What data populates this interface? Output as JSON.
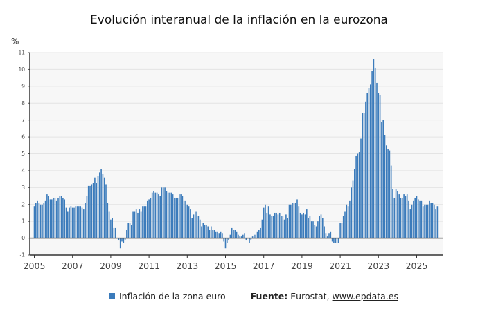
{
  "chart_data": {
    "type": "bar",
    "title": "Evolución interanual de la inflación en la eurozona",
    "ylabel": "%",
    "xlabel": "",
    "ylim": [
      -1,
      11
    ],
    "yticks": [
      -1,
      0,
      1,
      2,
      3,
      4,
      5,
      6,
      7,
      8,
      9,
      10,
      11
    ],
    "xticks": [
      "2005",
      "2007",
      "2009",
      "2011",
      "2013",
      "2015",
      "2017",
      "2019",
      "2021",
      "2023",
      "2025"
    ],
    "grid": true,
    "legend_position": "bottom",
    "start": "2005-01",
    "frequency": "monthly",
    "series": [
      {
        "name": "Inflación de la zona euro",
        "color": "#3b7bbb",
        "values": [
          1.9,
          2.1,
          2.2,
          2.1,
          2.0,
          2.0,
          2.1,
          2.2,
          2.6,
          2.5,
          2.3,
          2.3,
          2.4,
          2.4,
          2.2,
          2.4,
          2.5,
          2.5,
          2.4,
          2.3,
          1.8,
          1.6,
          1.8,
          1.9,
          1.8,
          1.8,
          1.9,
          1.9,
          1.9,
          1.9,
          1.8,
          1.7,
          2.1,
          2.5,
          3.1,
          3.1,
          3.2,
          3.3,
          3.6,
          3.3,
          3.7,
          3.9,
          4.1,
          3.8,
          3.6,
          3.2,
          2.1,
          1.6,
          1.1,
          1.2,
          0.6,
          0.6,
          0.0,
          -0.1,
          -0.6,
          -0.2,
          -0.3,
          -0.1,
          0.5,
          0.9,
          0.9,
          0.8,
          1.6,
          1.6,
          1.7,
          1.5,
          1.7,
          1.6,
          1.9,
          1.9,
          1.9,
          2.2,
          2.3,
          2.4,
          2.7,
          2.8,
          2.7,
          2.7,
          2.6,
          2.5,
          3.0,
          3.0,
          3.0,
          2.8,
          2.7,
          2.7,
          2.7,
          2.6,
          2.4,
          2.4,
          2.4,
          2.6,
          2.6,
          2.5,
          2.2,
          2.2,
          2.0,
          1.9,
          1.7,
          1.2,
          1.4,
          1.6,
          1.6,
          1.3,
          1.1,
          0.7,
          0.9,
          0.8,
          0.8,
          0.7,
          0.5,
          0.7,
          0.5,
          0.5,
          0.4,
          0.4,
          0.3,
          0.4,
          0.3,
          -0.2,
          -0.6,
          -0.3,
          -0.1,
          0.2,
          0.6,
          0.5,
          0.5,
          0.4,
          0.2,
          0.1,
          0.1,
          0.2,
          0.3,
          -0.1,
          0.0,
          -0.3,
          -0.1,
          0.1,
          0.2,
          0.2,
          0.4,
          0.5,
          0.6,
          1.1,
          1.8,
          2.0,
          1.5,
          1.9,
          1.4,
          1.3,
          1.3,
          1.5,
          1.5,
          1.4,
          1.5,
          1.3,
          1.3,
          1.1,
          1.4,
          1.2,
          2.0,
          2.0,
          2.1,
          2.1,
          2.1,
          2.3,
          1.9,
          1.5,
          1.4,
          1.5,
          1.4,
          1.7,
          1.2,
          1.3,
          1.0,
          1.0,
          0.8,
          0.7,
          1.0,
          1.3,
          1.4,
          1.2,
          0.7,
          0.3,
          0.1,
          0.3,
          0.4,
          -0.2,
          -0.3,
          -0.3,
          -0.3,
          -0.3,
          0.9,
          0.9,
          1.3,
          1.6,
          2.0,
          1.9,
          2.2,
          3.0,
          3.4,
          4.1,
          4.9,
          5.0,
          5.1,
          5.9,
          7.4,
          7.4,
          8.1,
          8.6,
          8.9,
          9.1,
          9.9,
          10.6,
          10.1,
          9.2,
          8.6,
          8.5,
          6.9,
          7.0,
          6.1,
          5.5,
          5.3,
          5.2,
          4.3,
          2.9,
          2.4,
          2.9,
          2.8,
          2.6,
          2.4,
          2.4,
          2.6,
          2.5,
          2.6,
          2.2,
          1.7,
          2.0,
          2.2,
          2.4,
          2.5,
          2.3,
          2.2,
          2.2,
          1.9,
          2.0,
          2.0,
          2.0,
          2.2,
          2.1,
          2.1,
          2.0,
          1.7,
          1.9
        ]
      }
    ],
    "source_label": "Fuente:",
    "source_text": "Eurostat,",
    "source_link": "www.epdata.es"
  }
}
